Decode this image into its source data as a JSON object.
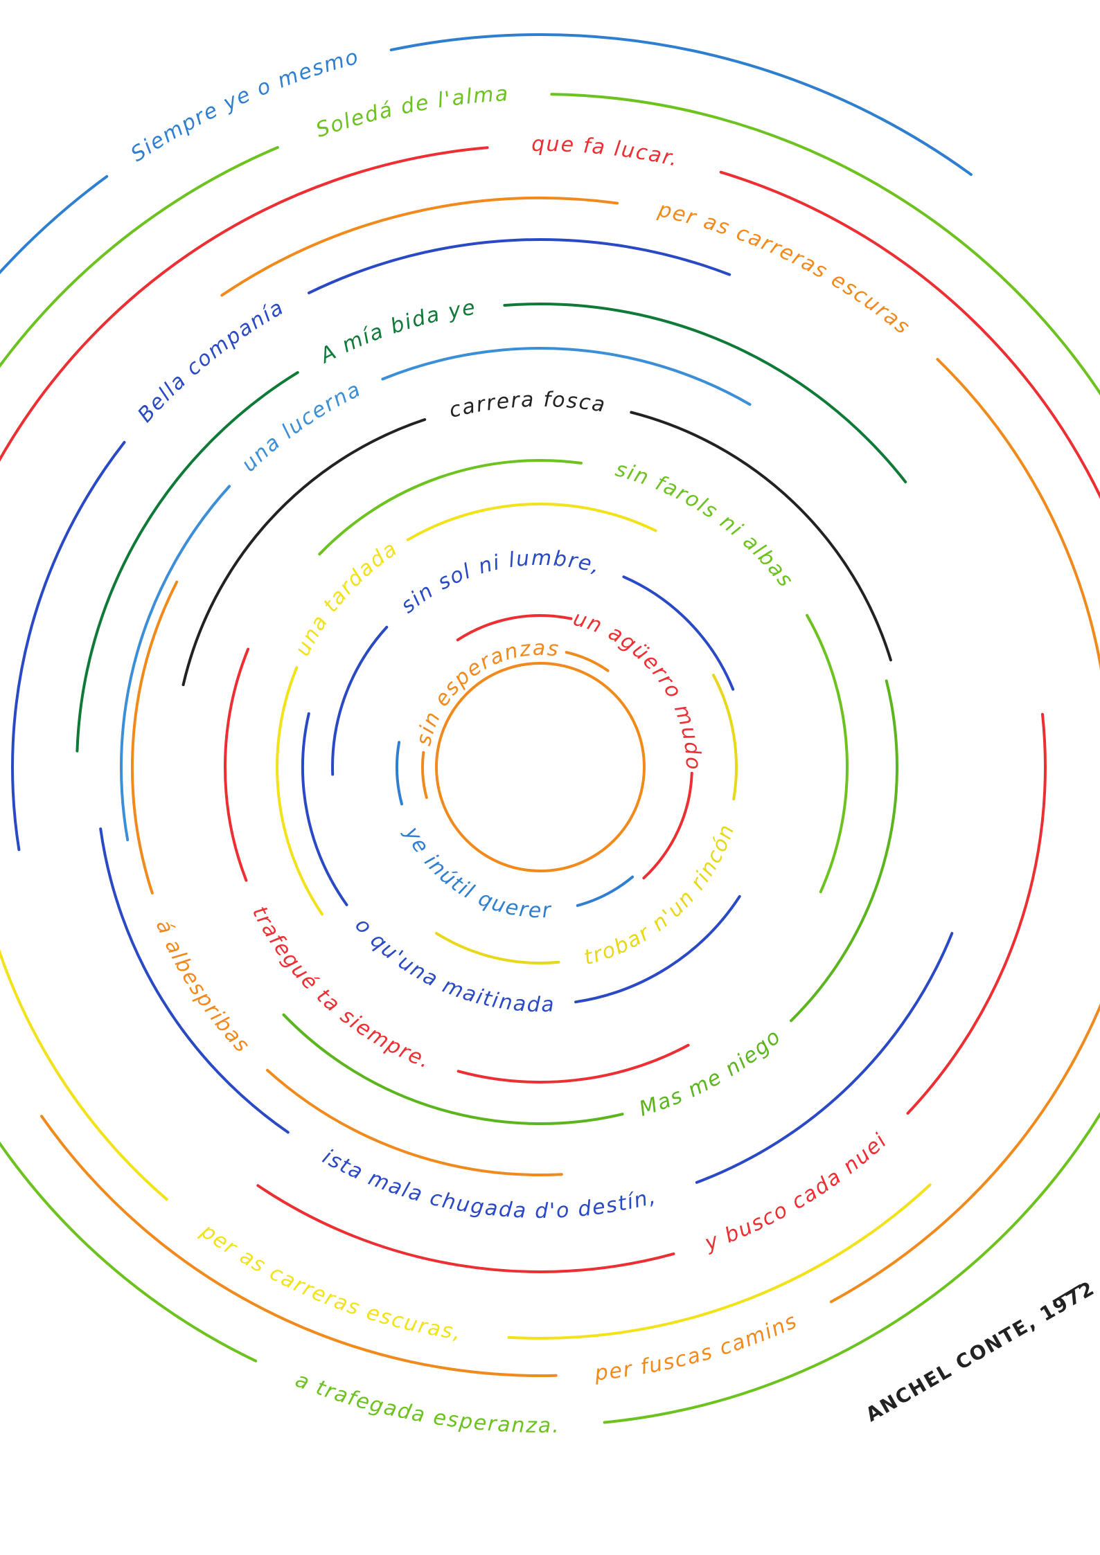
{
  "poem": {
    "lines": [
      {
        "text": "Siempre ye o mesmo",
        "color": "#2f7fd0"
      },
      {
        "text": "Soledá de l'alma",
        "color": "#6cc21e"
      },
      {
        "text": "que fa lucar.",
        "color": "#ec2f33"
      },
      {
        "text": "per as carreras escuras",
        "color": "#f18a1c"
      },
      {
        "text": "Bella companía",
        "color": "#2a49c4"
      },
      {
        "text": "A mía bida ye",
        "color": "#0f7a38"
      },
      {
        "text": "una lucerna",
        "color": "#3c8fd6"
      },
      {
        "text": "carrera fosca",
        "color": "#222222"
      },
      {
        "text": "sin farols ni albas",
        "color": "#6cc21e"
      },
      {
        "text": "una tardada",
        "color": "#f2e21a"
      },
      {
        "text": "sin sol ni lumbre,",
        "color": "#2a49c4"
      },
      {
        "text": "un agüerro mudo",
        "color": "#ec2f33"
      },
      {
        "text": "sin esperanzas",
        "color": "#f18a1c"
      },
      {
        "text": "ye inútil querer",
        "color": "#2f7fd0"
      },
      {
        "text": "trobar n'un rincón",
        "color": "#e8d81a"
      },
      {
        "text": "o qu'una maitinada",
        "color": "#2a49c4"
      },
      {
        "text": "trafegué ta siempre.",
        "color": "#ec2f33"
      },
      {
        "text": "á albespribas",
        "color": "#f18a1c"
      },
      {
        "text": "Mas me niego",
        "color": "#5cb51e"
      },
      {
        "text": "ista mala chugada d'o destín,",
        "color": "#2a49c4"
      },
      {
        "text": "y busco cada nuei",
        "color": "#ec2f33"
      },
      {
        "text": "per as carreras escuras,",
        "color": "#f2e21a"
      },
      {
        "text": "per fuscas camins",
        "color": "#f18a1c"
      },
      {
        "text": "a trafegada esperanza.",
        "color": "#6cc21e"
      }
    ],
    "signature": "ANCHEL CONTE, 1972"
  }
}
